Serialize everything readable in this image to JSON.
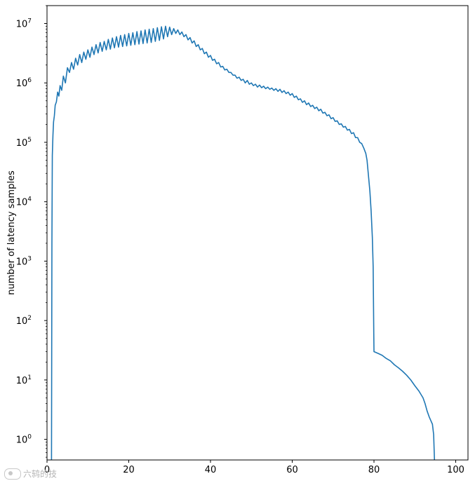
{
  "chart_data": {
    "type": "line",
    "title": "",
    "xlabel": "",
    "ylabel": "number of latency samples",
    "xscale": "linear",
    "yscale": "log",
    "xlim": [
      0,
      103
    ],
    "ylim": [
      0.45,
      20000000
    ],
    "xticks": [
      0,
      20,
      40,
      60,
      80,
      100
    ],
    "xtick_labels": [
      "0",
      "20",
      "40",
      "60",
      "80",
      "100"
    ],
    "yticks": [
      1,
      10,
      100,
      1000,
      10000,
      100000,
      1000000,
      10000000
    ],
    "ytick_labels": [
      "10^0",
      "10^1",
      "10^2",
      "10^3",
      "10^4",
      "10^5",
      "10^6",
      "10^7"
    ],
    "grid": false,
    "line_color": "#1f77b4",
    "series": [
      {
        "name": "",
        "points": [
          [
            1.1,
            0.45
          ],
          [
            1.2,
            2000
          ],
          [
            1.3,
            60000
          ],
          [
            1.45,
            130000
          ],
          [
            1.6,
            220000
          ],
          [
            1.8,
            280000
          ],
          [
            2.0,
            420000
          ],
          [
            2.3,
            480000
          ],
          [
            2.6,
            700000
          ],
          [
            2.9,
            600000
          ],
          [
            3.2,
            900000
          ],
          [
            3.6,
            750000
          ],
          [
            4.0,
            1300000
          ],
          [
            4.5,
            1000000
          ],
          [
            5.0,
            1800000
          ],
          [
            5.5,
            1500000
          ],
          [
            6.0,
            2200000
          ],
          [
            6.5,
            1700000
          ],
          [
            7.0,
            2600000
          ],
          [
            7.5,
            2000000
          ],
          [
            8.0,
            3000000
          ],
          [
            8.5,
            2200000
          ],
          [
            9.0,
            3300000
          ],
          [
            9.5,
            2500000
          ],
          [
            10.0,
            3600000
          ],
          [
            10.5,
            2700000
          ],
          [
            11.0,
            4000000
          ],
          [
            11.5,
            3000000
          ],
          [
            12.0,
            4400000
          ],
          [
            12.5,
            3200000
          ],
          [
            13.0,
            4800000
          ],
          [
            13.5,
            3400000
          ],
          [
            14.0,
            5000000
          ],
          [
            14.5,
            3600000
          ],
          [
            15.0,
            5400000
          ],
          [
            15.5,
            3700000
          ],
          [
            16.0,
            5700000
          ],
          [
            16.5,
            3900000
          ],
          [
            17.0,
            6000000
          ],
          [
            17.5,
            4000000
          ],
          [
            18.0,
            6300000
          ],
          [
            18.5,
            4100000
          ],
          [
            19.0,
            6500000
          ],
          [
            19.5,
            4200000
          ],
          [
            20.0,
            6800000
          ],
          [
            20.5,
            4300000
          ],
          [
            21.0,
            7000000
          ],
          [
            21.5,
            4400000
          ],
          [
            22.0,
            7300000
          ],
          [
            22.5,
            4500000
          ],
          [
            23.0,
            7500000
          ],
          [
            23.5,
            4600000
          ],
          [
            24.0,
            7800000
          ],
          [
            24.5,
            4700000
          ],
          [
            25.0,
            8000000
          ],
          [
            25.5,
            4800000
          ],
          [
            26.0,
            8200000
          ],
          [
            26.5,
            5000000
          ],
          [
            27.0,
            8500000
          ],
          [
            27.5,
            5200000
          ],
          [
            28.0,
            8800000
          ],
          [
            28.5,
            5500000
          ],
          [
            29.0,
            9000000
          ],
          [
            29.5,
            6000000
          ],
          [
            30.0,
            8700000
          ],
          [
            30.5,
            6500000
          ],
          [
            31.0,
            8200000
          ],
          [
            31.5,
            6800000
          ],
          [
            32.0,
            7800000
          ],
          [
            32.5,
            6500000
          ],
          [
            33.0,
            7200000
          ],
          [
            33.5,
            6000000
          ],
          [
            34.0,
            6500000
          ],
          [
            34.5,
            5300000
          ],
          [
            35.0,
            5800000
          ],
          [
            35.5,
            4700000
          ],
          [
            36.0,
            5100000
          ],
          [
            36.5,
            4100000
          ],
          [
            37.0,
            4400000
          ],
          [
            37.5,
            3600000
          ],
          [
            38.0,
            3800000
          ],
          [
            38.5,
            3100000
          ],
          [
            39.0,
            3300000
          ],
          [
            39.5,
            2700000
          ],
          [
            40.0,
            2900000
          ],
          [
            40.5,
            2400000
          ],
          [
            41.0,
            2500000
          ],
          [
            41.5,
            2100000
          ],
          [
            42.0,
            2200000
          ],
          [
            42.5,
            1850000
          ],
          [
            43.0,
            1900000
          ],
          [
            43.5,
            1650000
          ],
          [
            44.0,
            1700000
          ],
          [
            44.5,
            1500000
          ],
          [
            45.0,
            1500000
          ],
          [
            45.5,
            1350000
          ],
          [
            46.0,
            1350000
          ],
          [
            46.5,
            1200000
          ],
          [
            47.0,
            1250000
          ],
          [
            47.5,
            1100000
          ],
          [
            48.0,
            1150000
          ],
          [
            48.5,
            1000000
          ],
          [
            49.0,
            1100000
          ],
          [
            49.5,
            950000
          ],
          [
            50.0,
            1000000
          ],
          [
            50.5,
            900000
          ],
          [
            51.0,
            950000
          ],
          [
            51.5,
            850000
          ],
          [
            52.0,
            920000
          ],
          [
            52.5,
            830000
          ],
          [
            53.0,
            880000
          ],
          [
            53.5,
            800000
          ],
          [
            54.0,
            850000
          ],
          [
            54.5,
            780000
          ],
          [
            55.0,
            820000
          ],
          [
            55.5,
            750000
          ],
          [
            56.0,
            800000
          ],
          [
            56.5,
            720000
          ],
          [
            57.0,
            780000
          ],
          [
            57.5,
            690000
          ],
          [
            58.0,
            740000
          ],
          [
            58.5,
            660000
          ],
          [
            59.0,
            700000
          ],
          [
            59.5,
            620000
          ],
          [
            60.0,
            660000
          ],
          [
            60.5,
            570000
          ],
          [
            61.0,
            600000
          ],
          [
            61.5,
            520000
          ],
          [
            62.0,
            540000
          ],
          [
            62.5,
            470000
          ],
          [
            63.0,
            500000
          ],
          [
            63.5,
            430000
          ],
          [
            64.0,
            460000
          ],
          [
            64.5,
            400000
          ],
          [
            65.0,
            420000
          ],
          [
            65.5,
            370000
          ],
          [
            66.0,
            390000
          ],
          [
            66.5,
            340000
          ],
          [
            67.0,
            360000
          ],
          [
            67.5,
            310000
          ],
          [
            68.0,
            320000
          ],
          [
            68.5,
            280000
          ],
          [
            69.0,
            290000
          ],
          [
            69.5,
            250000
          ],
          [
            70.0,
            260000
          ],
          [
            70.5,
            225000
          ],
          [
            71.0,
            230000
          ],
          [
            71.5,
            200000
          ],
          [
            72.0,
            205000
          ],
          [
            72.5,
            180000
          ],
          [
            73.0,
            185000
          ],
          [
            73.5,
            160000
          ],
          [
            74.0,
            165000
          ],
          [
            74.5,
            140000
          ],
          [
            75.0,
            145000
          ],
          [
            75.5,
            120000
          ],
          [
            76.0,
            120000
          ],
          [
            76.5,
            100000
          ],
          [
            77.0,
            95000
          ],
          [
            77.5,
            80000
          ],
          [
            78.0,
            65000
          ],
          [
            78.3,
            50000
          ],
          [
            78.6,
            30000
          ],
          [
            79.0,
            15000
          ],
          [
            79.3,
            7000
          ],
          [
            79.6,
            2500
          ],
          [
            79.8,
            800
          ],
          [
            79.95,
            60
          ],
          [
            80.0,
            30
          ],
          [
            81.0,
            28
          ],
          [
            82.0,
            26
          ],
          [
            83.0,
            23
          ],
          [
            84.0,
            21
          ],
          [
            85.0,
            18
          ],
          [
            86.0,
            16
          ],
          [
            87.0,
            14
          ],
          [
            88.0,
            12
          ],
          [
            89.0,
            10
          ],
          [
            90.0,
            8
          ],
          [
            91.0,
            6.5
          ],
          [
            92.0,
            5
          ],
          [
            92.5,
            4
          ],
          [
            93.0,
            3
          ],
          [
            93.5,
            2.4
          ],
          [
            94.0,
            2
          ],
          [
            94.3,
            1.8
          ],
          [
            94.6,
            1.2
          ],
          [
            94.8,
            0.45
          ]
        ]
      }
    ]
  },
  "watermark": {
    "text": "六鸫的技"
  }
}
